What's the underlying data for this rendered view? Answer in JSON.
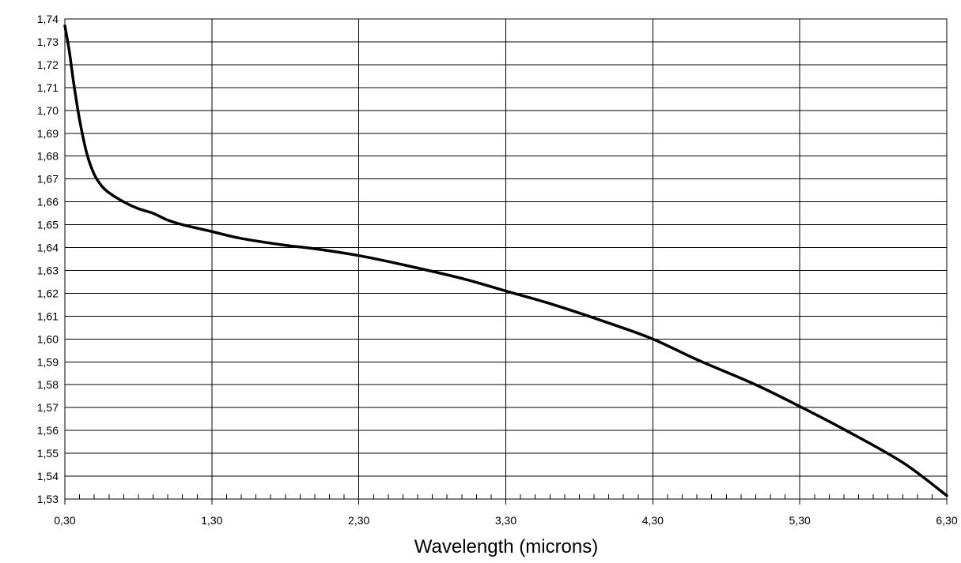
{
  "chart_data": {
    "type": "line",
    "title": "",
    "xlabel": "Wavelength (microns)",
    "ylabel": "",
    "xlim": [
      0.3,
      6.3
    ],
    "ylim": [
      1.53,
      1.74
    ],
    "grid": true,
    "x_ticks": [
      0.3,
      1.3,
      2.3,
      3.3,
      4.3,
      5.3,
      6.3
    ],
    "x_tick_labels": [
      "0,30",
      "1,30",
      "2,30",
      "3,30",
      "4,30",
      "5,30",
      "6,30"
    ],
    "x_minor_step": 0.1,
    "y_ticks": [
      1.53,
      1.54,
      1.55,
      1.56,
      1.57,
      1.58,
      1.59,
      1.6,
      1.61,
      1.62,
      1.63,
      1.64,
      1.65,
      1.66,
      1.67,
      1.68,
      1.69,
      1.7,
      1.71,
      1.72,
      1.73,
      1.74
    ],
    "y_tick_labels": [
      "1,53",
      "1,54",
      "1,55",
      "1,56",
      "1,57",
      "1,58",
      "1,59",
      "1,60",
      "1,61",
      "1,62",
      "1,63",
      "1,64",
      "1,65",
      "1,66",
      "1,67",
      "1,68",
      "1,69",
      "1,70",
      "1,71",
      "1,72",
      "1,73",
      "1,74"
    ],
    "series": [
      {
        "color": "#000000",
        "x": [
          0.3,
          0.33,
          0.36,
          0.4,
          0.45,
          0.5,
          0.55,
          0.6,
          0.7,
          0.8,
          0.9,
          1.0,
          1.1,
          1.3,
          1.5,
          1.8,
          2.0,
          2.3,
          2.6,
          3.0,
          3.3,
          3.6,
          4.0,
          4.3,
          4.6,
          5.0,
          5.3,
          5.6,
          6.0,
          6.3
        ],
        "y": [
          1.737,
          1.726,
          1.712,
          1.696,
          1.681,
          1.672,
          1.667,
          1.664,
          1.66,
          1.657,
          1.655,
          1.652,
          1.65,
          1.647,
          1.644,
          1.641,
          1.6395,
          1.6365,
          1.6325,
          1.6265,
          1.621,
          1.6155,
          1.607,
          1.6,
          1.591,
          1.58,
          1.5705,
          1.5605,
          1.546,
          1.5315
        ]
      }
    ]
  }
}
